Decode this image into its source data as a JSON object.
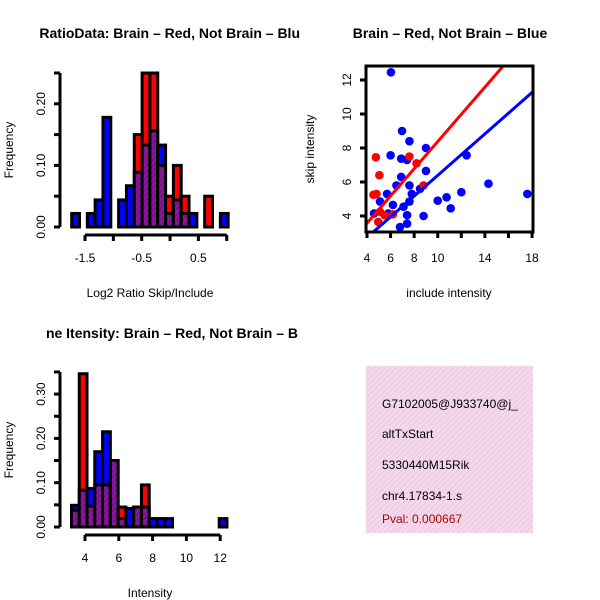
{
  "colors": {
    "blue": "#0000ff",
    "red": "#ff0000",
    "purple": "#8b1a9b",
    "pink": "#f6d6f0",
    "pval": "#b00000"
  },
  "chart_data": [
    {
      "type": "bar",
      "title": "RatioData: Brain – Red, Not Brain – Blu",
      "xlabel": "Log2 Ratio Skip/Include",
      "ylabel": "Frequency",
      "xlim": [
        -1.75,
        1.01
      ],
      "ylim": [
        0,
        0.25
      ],
      "xticks": [
        -1.5,
        -1.0,
        -0.5,
        0.0,
        0.5,
        1.0
      ],
      "xtick_labels": [
        "-1.5",
        "",
        "-0.5",
        "",
        "0.5",
        ""
      ],
      "yticks": [
        0,
        0.05,
        0.1,
        0.15,
        0.2,
        0.25
      ],
      "ytick_labels": [
        "0.00",
        "",
        "0.10",
        "",
        "0.20",
        ""
      ],
      "bin_start": -1.735,
      "bin_width": 0.138,
      "series": [
        {
          "name": "Not Brain",
          "color": "blue",
          "values": [
            0.022,
            0,
            0.022,
            0.044,
            0.178,
            0,
            0.044,
            0.067,
            0.089,
            0.133,
            0.156,
            0.133,
            0.022,
            0.044,
            0.022,
            0.022,
            0,
            0,
            0,
            0.022
          ]
        },
        {
          "name": "Brain",
          "color": "red",
          "values": [
            0,
            0,
            0,
            0,
            0,
            0,
            0,
            0,
            0.15,
            0.25,
            0.25,
            0.1,
            0.05,
            0.1,
            0.05,
            0,
            0,
            0.05,
            0,
            0
          ]
        }
      ]
    },
    {
      "type": "scatter",
      "title": "Brain – Red, Not Brain – Blue",
      "xlabel": "include intensity",
      "ylabel": "skip intensity",
      "xlim": [
        3.9,
        18.1
      ],
      "ylim": [
        3.05,
        12.9
      ],
      "xticks": [
        4,
        6,
        8,
        10,
        12,
        14,
        16,
        18
      ],
      "xtick_labels": [
        "4",
        "6",
        "8",
        "10",
        "",
        "14",
        "",
        "18"
      ],
      "yticks": [
        4,
        6,
        8,
        10,
        12
      ],
      "ytick_labels": [
        "4",
        "6",
        "8",
        "10",
        "12"
      ],
      "series": [
        {
          "name": "Not Brain",
          "color": "blue",
          "x": [
            6.03,
            6.97,
            7.6,
            9.0,
            6.0,
            6.9,
            7.4,
            9.0,
            12.45,
            14.3,
            17.6,
            12.0,
            10.0,
            10.75,
            11.1,
            8.8,
            6.9,
            6.5,
            7.6,
            5.7,
            5.1,
            6.2,
            7.1,
            7.6,
            8.5,
            7.4,
            7.4,
            6.8,
            4.6,
            5.8,
            7.8
          ],
          "y": [
            12.45,
            9.0,
            8.4,
            8.0,
            7.57,
            7.37,
            7.3,
            6.65,
            7.57,
            5.9,
            5.3,
            5.4,
            4.9,
            5.1,
            4.45,
            4.0,
            6.3,
            5.8,
            5.8,
            5.3,
            4.85,
            4.65,
            4.55,
            4.85,
            5.6,
            4.05,
            3.55,
            3.35,
            4.15,
            4.15,
            5.3
          ],
          "fit": {
            "slope": 0.61,
            "intercept": 0.29,
            "x_range": [
              4.5,
              18.1
            ]
          }
        },
        {
          "name": "Brain",
          "color": "red",
          "x": [
            4.75,
            5.05,
            4.55,
            4.8,
            7.6,
            8.2,
            8.8,
            5.1,
            4.95,
            5.5,
            6.2
          ],
          "y": [
            7.45,
            6.4,
            5.25,
            5.3,
            7.5,
            7.1,
            5.8,
            4.25,
            3.65,
            4.05,
            4.1
          ],
          "fit": {
            "slope": 0.8,
            "intercept": 0.38,
            "x_range": [
              3.9,
              15.7
            ]
          }
        }
      ]
    },
    {
      "type": "bar",
      "title": "ne Itensity: Brain – Red, Not Brain – B",
      "xlabel": "Intensity",
      "ylabel": "Frequency",
      "xlim": [
        3.2,
        12.4
      ],
      "ylim": [
        0,
        0.35
      ],
      "xticks": [
        4,
        6,
        8,
        10,
        12
      ],
      "xtick_labels": [
        "4",
        "6",
        "8",
        "10",
        "12"
      ],
      "yticks": [
        0,
        0.05,
        0.1,
        0.15,
        0.2,
        0.25,
        0.3,
        0.35
      ],
      "ytick_labels": [
        "0.00",
        "",
        "0.10",
        "",
        "0.20",
        "",
        "0.30",
        ""
      ],
      "bin_start": 3.2,
      "bin_width": 0.46,
      "series": [
        {
          "name": "Not Brain",
          "color": "blue",
          "values": [
            0.049,
            0.083,
            0.087,
            0.17,
            0.215,
            0.15,
            0.019,
            0.042,
            0.045,
            0.045,
            0.019,
            0.019,
            0.019,
            0,
            0,
            0,
            0,
            0,
            0,
            0.019
          ]
        },
        {
          "name": "Brain",
          "color": "red",
          "values": [
            0.038,
            0.346,
            0.047,
            0.095,
            0.095,
            0.15,
            0.045,
            0,
            0.045,
            0.095,
            0,
            0,
            0,
            0,
            0,
            0,
            0,
            0,
            0,
            0
          ]
        }
      ]
    }
  ],
  "info_box": {
    "lines": [
      "G7102005@J933740@j_",
      "altTxStart",
      "5330440M15Rik",
      "chr4.17834-1.s"
    ],
    "pval": "Pval: 0.000667"
  }
}
